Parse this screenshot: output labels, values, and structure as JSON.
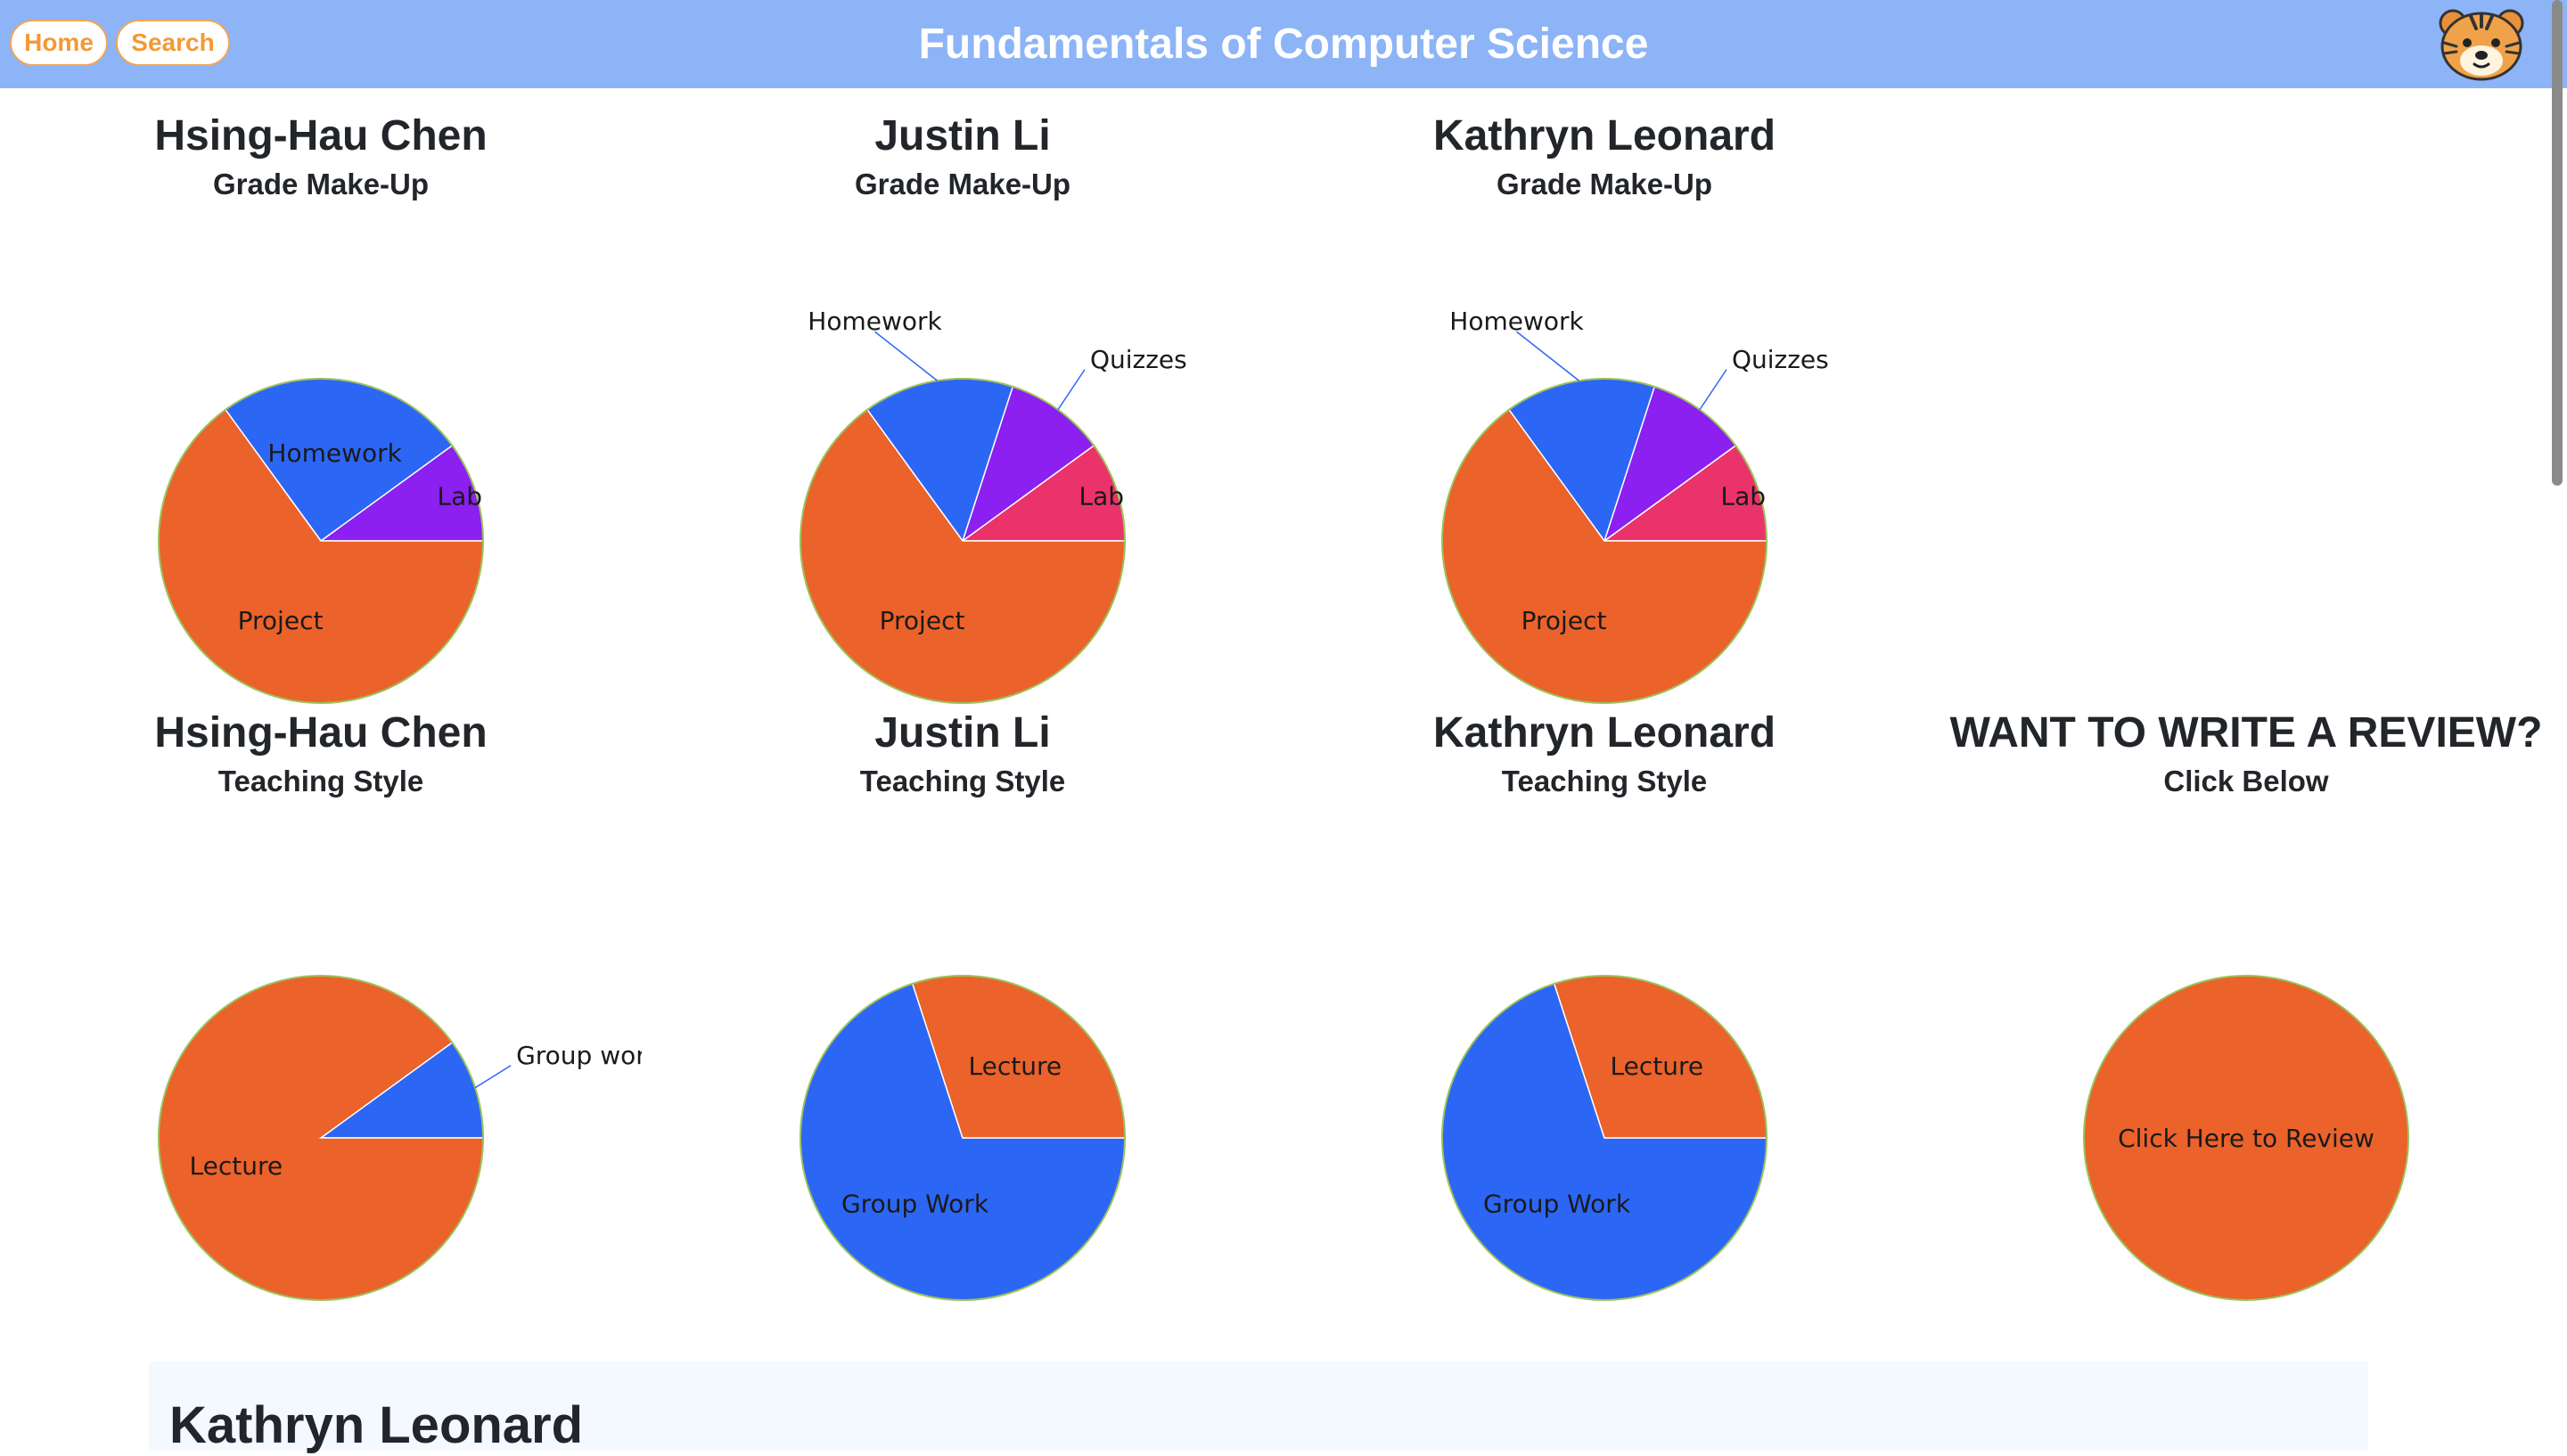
{
  "nav": {
    "home_label": "Home",
    "search_label": "Search"
  },
  "header": {
    "title": "Fundamentals of Computer Science",
    "logo_icon": "tiger-face-icon"
  },
  "colors": {
    "header_bg": "#8db4f7",
    "button_text": "#f29a34",
    "orange": "#eb622b",
    "blue": "#2c66f5",
    "purple": "#8b20f0",
    "pink": "#ea336b"
  },
  "panels": [
    {
      "name": "Hsing-Hau Chen",
      "subtitle": "Grade Make-Up",
      "chart": 0
    },
    {
      "name": "Justin Li",
      "subtitle": "Grade Make-Up",
      "chart": 1
    },
    {
      "name": "Kathryn Leonard",
      "subtitle": "Grade Make-Up",
      "chart": 2
    },
    {
      "name": "Hsing-Hau Chen",
      "subtitle": "Teaching Style",
      "chart": 3
    },
    {
      "name": "Justin Li",
      "subtitle": "Teaching Style",
      "chart": 4
    },
    {
      "name": "Kathryn Leonard",
      "subtitle": "Teaching Style",
      "chart": 5
    },
    {
      "name": "WANT TO WRITE A REVIEW?",
      "subtitle": "Click Below",
      "chart": 6
    }
  ],
  "review": {
    "name": "Kathryn Leonard"
  },
  "chart_data": [
    {
      "type": "pie",
      "title": "Grade Make-Up",
      "labels": [
        "Lab",
        "Homework",
        "Project"
      ],
      "values": [
        10,
        25,
        65
      ],
      "colors": [
        "#8b20f0",
        "#2c66f5",
        "#eb622b"
      ]
    },
    {
      "type": "pie",
      "title": "Grade Make-Up",
      "labels": [
        "Lab",
        "Quizzes",
        "Homework",
        "Project"
      ],
      "values": [
        10,
        10,
        15,
        65
      ],
      "colors": [
        "#ea336b",
        "#8b20f0",
        "#2c66f5",
        "#eb622b"
      ]
    },
    {
      "type": "pie",
      "title": "Grade Make-Up",
      "labels": [
        "Lab",
        "Quizzes",
        "Homework",
        "Project"
      ],
      "values": [
        10,
        10,
        15,
        65
      ],
      "colors": [
        "#ea336b",
        "#8b20f0",
        "#2c66f5",
        "#eb622b"
      ]
    },
    {
      "type": "pie",
      "title": "Teaching Style",
      "labels": [
        "Group work",
        "Lecture"
      ],
      "values": [
        10,
        90
      ],
      "colors": [
        "#2c66f5",
        "#eb622b"
      ]
    },
    {
      "type": "pie",
      "title": "Teaching Style",
      "labels": [
        "Group Work",
        "Lecture"
      ],
      "values": [
        70,
        30
      ],
      "colors": [
        "#2c66f5",
        "#eb622b"
      ],
      "start": "east-clockwise"
    },
    {
      "type": "pie",
      "title": "Teaching Style",
      "labels": [
        "Group Work",
        "Lecture"
      ],
      "values": [
        70,
        30
      ],
      "colors": [
        "#2c66f5",
        "#eb622b"
      ],
      "start": "east-clockwise"
    },
    {
      "type": "pie",
      "title": "Click Below",
      "labels": [
        "Click Here to Review"
      ],
      "values": [
        100
      ],
      "colors": [
        "#eb622b"
      ]
    }
  ]
}
